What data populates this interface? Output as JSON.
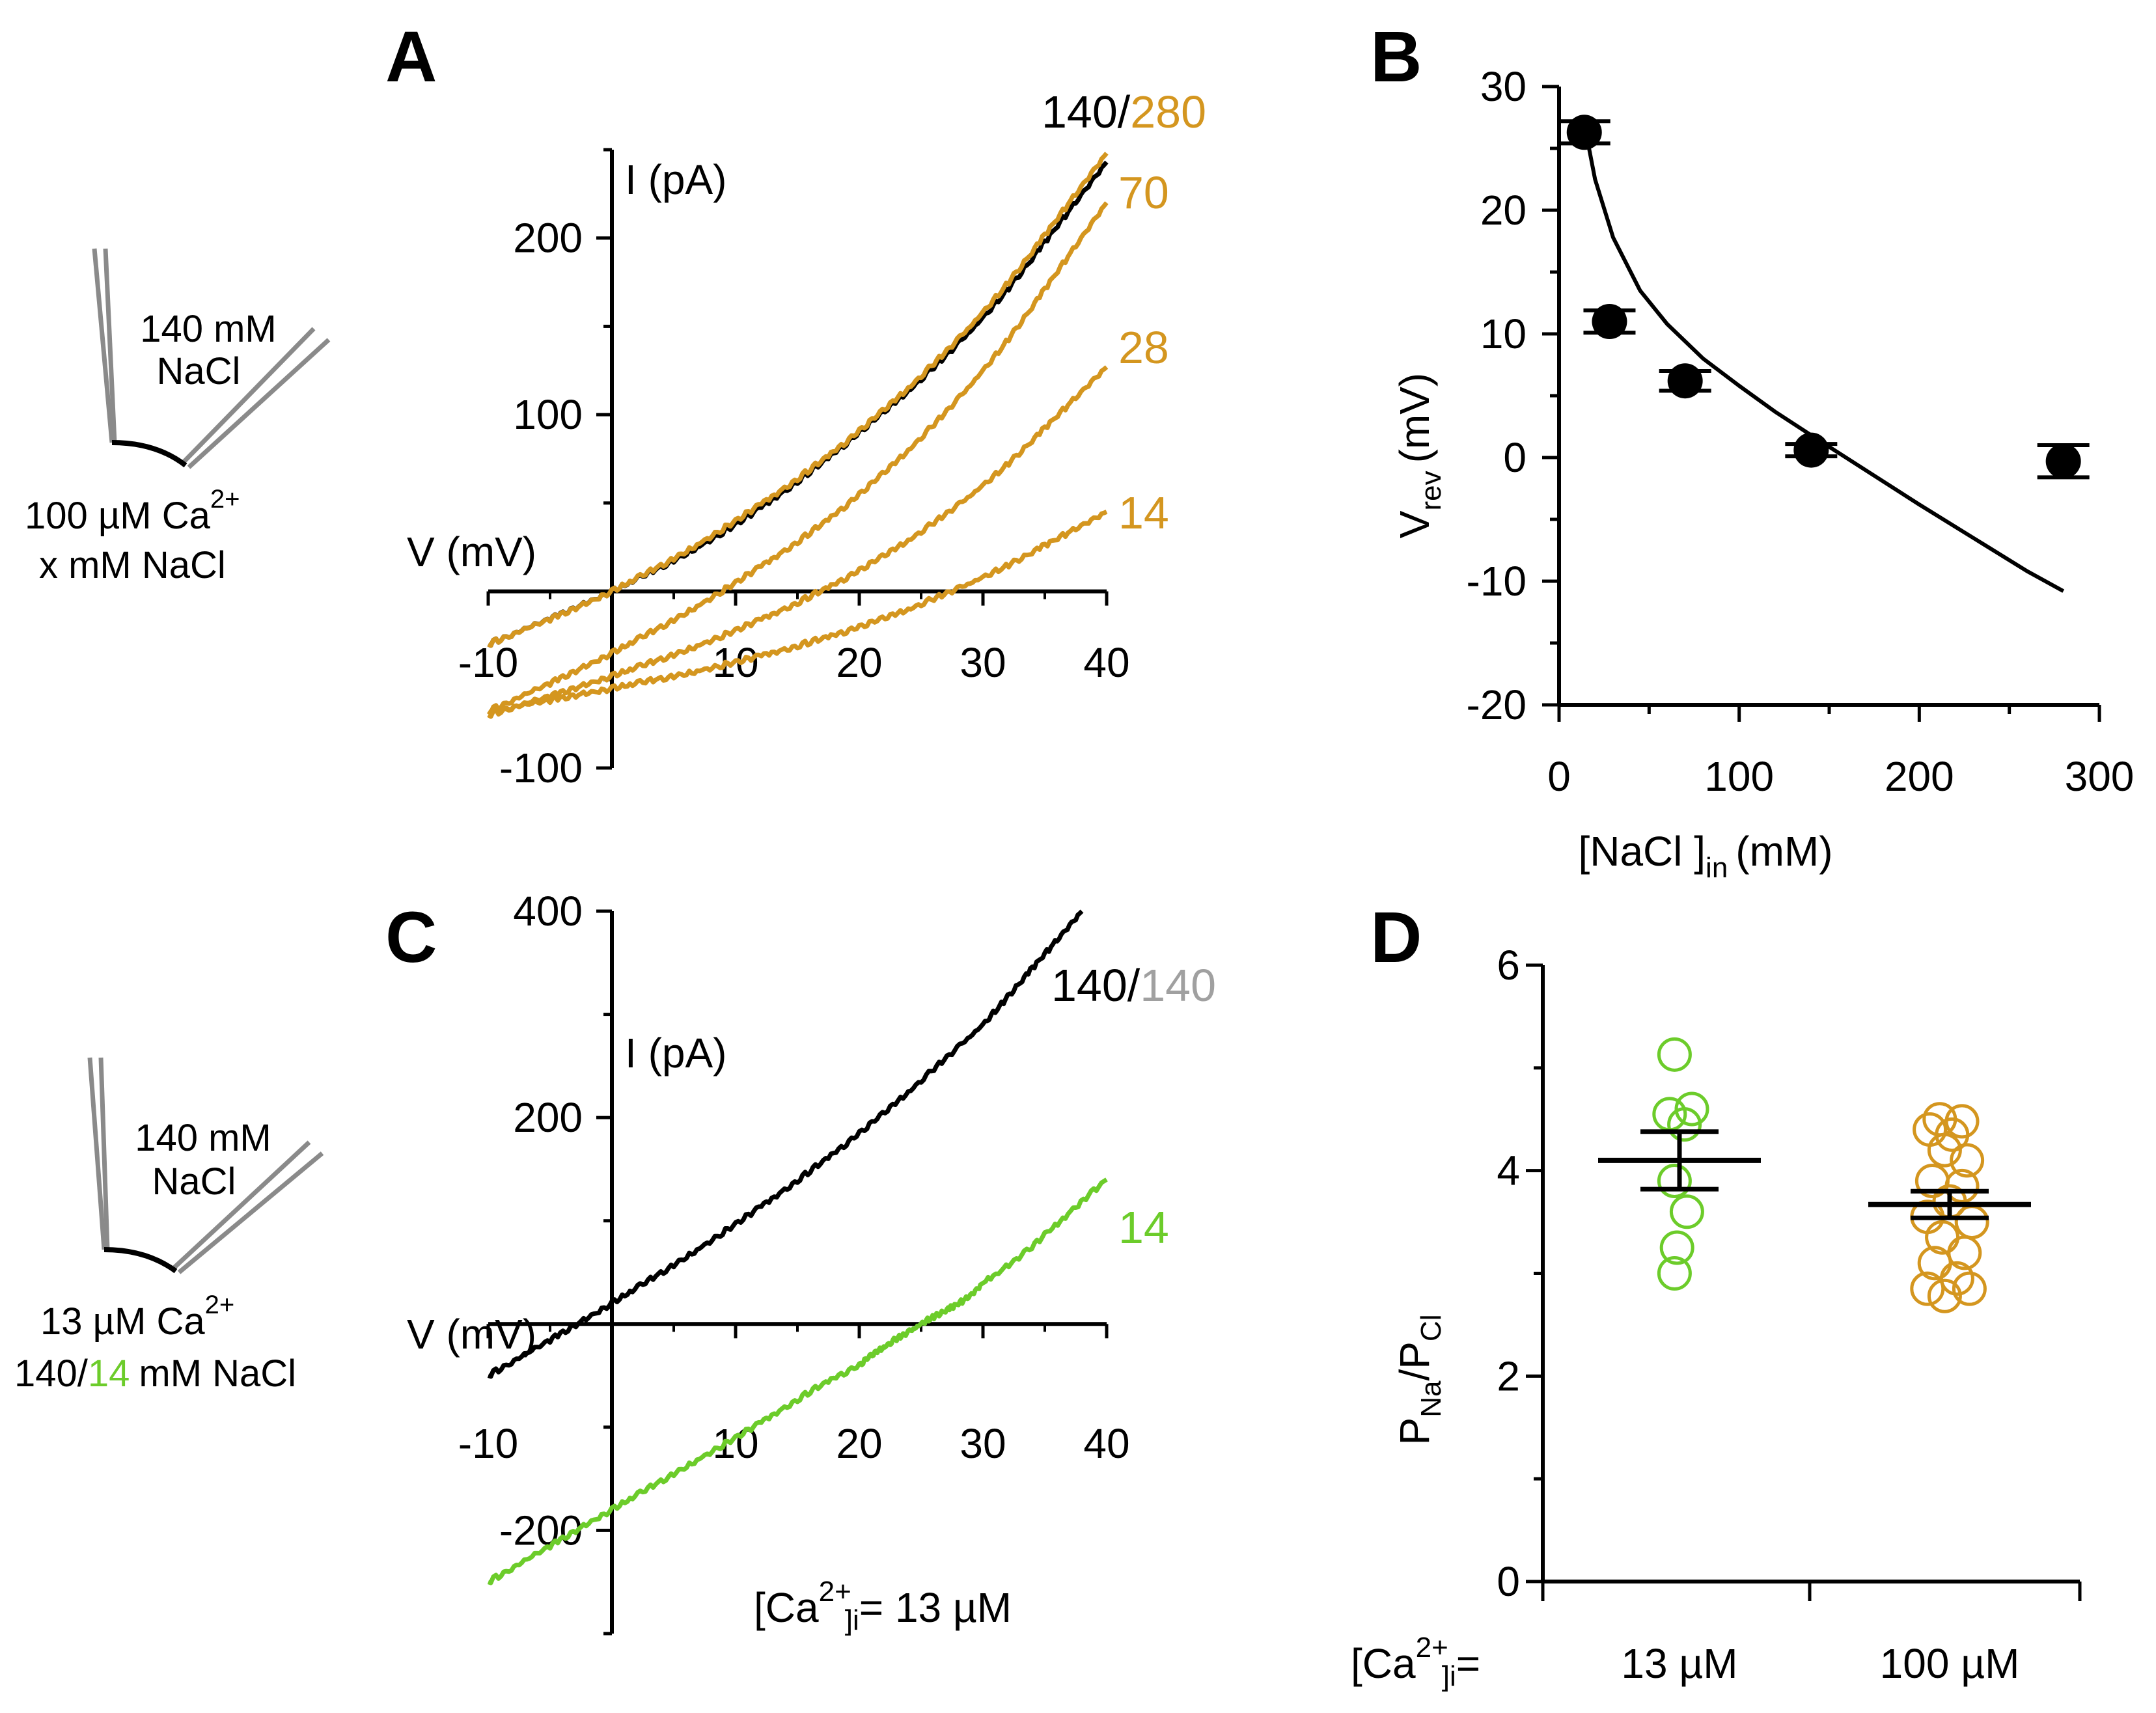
{
  "colors": {
    "black": "#000000",
    "orange": "#d4961f",
    "green": "#6ccc2a",
    "gray": "#a0a0a0",
    "pipette": "#8a8a8a"
  },
  "schematics": {
    "top": {
      "pipette_conc": "140 mM",
      "pipette_salt": "NaCl",
      "bath_ca_prefix": "100 µM Ca",
      "bath_ca_sup": "2+",
      "bath_nacl": "x mM NaCl"
    },
    "bottom": {
      "pipette_conc": "140 mM",
      "pipette_salt": "NaCl",
      "bath_ca_prefix": "13 µM Ca",
      "bath_ca_sup": "2+",
      "bath_prefix": "140/",
      "bath_green": "14",
      "bath_suffix": "mM NaCl"
    }
  },
  "chart_data": [
    {
      "panel": "A",
      "type": "line",
      "xlabel": "V (mV)",
      "ylabel": "I (pA)",
      "xlim": [
        -10,
        40
      ],
      "ylim": [
        -100,
        250
      ],
      "xticks": [
        "-10",
        "10",
        "20",
        "30",
        "40"
      ],
      "yticks": [
        "-100",
        "100",
        "200"
      ],
      "xtick_values": [
        -10,
        10,
        20,
        30,
        40
      ],
      "ytick_values": [
        -100,
        100,
        200
      ],
      "series": [
        {
          "name": "140",
          "color": "#000000",
          "x": [
            -10,
            0,
            10,
            20,
            30,
            40
          ],
          "y": [
            -30,
            0,
            38,
            90,
            155,
            243
          ]
        },
        {
          "name": "280",
          "color": "#d4961f",
          "x": [
            -10,
            0,
            10,
            20,
            30,
            40
          ],
          "y": [
            -30,
            0,
            40,
            91,
            158,
            248
          ]
        },
        {
          "name": "70",
          "color": "#d4961f",
          "x": [
            -10,
            0,
            10,
            20,
            30,
            40
          ],
          "y": [
            -68,
            -35,
            5,
            55,
            125,
            220
          ]
        },
        {
          "name": "28",
          "color": "#d4961f",
          "x": [
            -10,
            0,
            10,
            20,
            30,
            40
          ],
          "y": [
            -70,
            -48,
            -22,
            12,
            60,
            127
          ]
        },
        {
          "name": "14",
          "color": "#d4961f",
          "x": [
            -10,
            0,
            10,
            20,
            30,
            40
          ],
          "y": [
            -68,
            -55,
            -40,
            -20,
            8,
            45
          ]
        }
      ],
      "top_label_black": "140/",
      "top_label_orange": "280",
      "curve_labels": [
        "70",
        "28",
        "14"
      ]
    },
    {
      "panel": "B",
      "type": "scatter",
      "xlabel": "[NaCl ]",
      "xlabel_sub": "in",
      "xlabel_unit": "(mM)",
      "ylabel": "V",
      "ylabel_sub": "rev",
      "ylabel_unit": "(mV)",
      "xlim": [
        0,
        300
      ],
      "ylim": [
        -20,
        30
      ],
      "xticks": [
        "0",
        "100",
        "200",
        "300"
      ],
      "yticks": [
        "-20",
        "-10",
        "0",
        "10",
        "20",
        "30"
      ],
      "xtick_values": [
        0,
        100,
        200,
        300
      ],
      "ytick_values": [
        -20,
        -10,
        0,
        10,
        20,
        30
      ],
      "points": [
        {
          "x": 14,
          "y": 26.3,
          "err": 0.9
        },
        {
          "x": 28,
          "y": 11,
          "err": 0.9
        },
        {
          "x": 70,
          "y": 6.2,
          "err": 0.8
        },
        {
          "x": 140,
          "y": 0.6,
          "err": 0.5
        },
        {
          "x": 280,
          "y": -0.3,
          "err": 1.3
        }
      ],
      "fit": {
        "x": [
          14,
          20,
          30,
          45,
          60,
          80,
          100,
          120,
          140,
          170,
          200,
          230,
          260,
          280
        ],
        "y": [
          27,
          22.5,
          17.8,
          13.5,
          10.8,
          8,
          5.8,
          3.7,
          1.8,
          -1,
          -3.8,
          -6.5,
          -9.2,
          -10.8
        ]
      }
    },
    {
      "panel": "C",
      "type": "line",
      "xlabel": "V (mV)",
      "ylabel": "I (pA)",
      "xlim": [
        -10,
        40
      ],
      "ylim": [
        -300,
        400
      ],
      "xticks": [
        "-10",
        "10",
        "20",
        "30",
        "40"
      ],
      "yticks": [
        "-200",
        "200",
        "400"
      ],
      "xtick_values": [
        -10,
        10,
        20,
        30,
        40
      ],
      "ytick_values": [
        -200,
        200,
        400
      ],
      "series": [
        {
          "name": "140",
          "color": "#000000",
          "x": [
            -10,
            0,
            10,
            20,
            30,
            38
          ],
          "y": [
            -50,
            20,
            97,
            185,
            290,
            400
          ]
        },
        {
          "name": "14",
          "color": "#6ccc2a",
          "x": [
            -10,
            0,
            10,
            20,
            25,
            30,
            40
          ],
          "y": [
            -250,
            -180,
            -110,
            -40,
            0,
            40,
            140
          ]
        }
      ],
      "top_label_black": "140/",
      "top_label_gray": "140",
      "curve_label": "14",
      "annotation_prefix": "[Ca",
      "annotation_sup": "2+",
      "annotation_sub": "i",
      "annotation_suffix": "= 13 µM"
    },
    {
      "panel": "D",
      "type": "scatter",
      "ylabel": "P",
      "ylabel_sub1": "Na",
      "ylabel_mid": "/P",
      "ylabel_sub2": "Cl",
      "ylim": [
        0,
        6
      ],
      "yticks": [
        "0",
        "2",
        "4",
        "6"
      ],
      "ytick_values": [
        0,
        2,
        4,
        6
      ],
      "row_label_prefix": "[Ca",
      "row_label_sup": "2+",
      "row_label_sub": "i",
      "row_label_suffix": "=",
      "groups": [
        {
          "label": "13 µM",
          "color": "#6ccc2a",
          "mean": 4.1,
          "sem": 0.28,
          "points": [
            {
              "y": 5.13,
              "dx": -0.02
            },
            {
              "y": 4.6,
              "dx": 0.05
            },
            {
              "y": 4.55,
              "dx": -0.04
            },
            {
              "y": 4.45,
              "dx": 0.02
            },
            {
              "y": 3.9,
              "dx": -0.02
            },
            {
              "y": 3.6,
              "dx": 0.03
            },
            {
              "y": 3.25,
              "dx": -0.01
            },
            {
              "y": 3.0,
              "dx": -0.02
            }
          ]
        },
        {
          "label": "100 µM",
          "color": "#d4961f",
          "mean": 3.67,
          "sem": 0.13,
          "points": [
            {
              "y": 4.5,
              "dx": -0.04
            },
            {
              "y": 4.48,
              "dx": 0.05
            },
            {
              "y": 4.4,
              "dx": -0.08
            },
            {
              "y": 4.35,
              "dx": 0.01
            },
            {
              "y": 4.1,
              "dx": 0.07
            },
            {
              "y": 3.9,
              "dx": -0.07
            },
            {
              "y": 3.85,
              "dx": 0.05
            },
            {
              "y": 3.7,
              "dx": 0.0
            },
            {
              "y": 3.55,
              "dx": -0.09
            },
            {
              "y": 3.5,
              "dx": 0.09
            },
            {
              "y": 3.35,
              "dx": -0.03
            },
            {
              "y": 3.2,
              "dx": 0.06
            },
            {
              "y": 3.1,
              "dx": -0.06
            },
            {
              "y": 2.95,
              "dx": 0.03
            },
            {
              "y": 2.85,
              "dx": -0.09
            },
            {
              "y": 2.85,
              "dx": 0.08
            },
            {
              "y": 2.78,
              "dx": -0.02
            },
            {
              "y": 4.2,
              "dx": -0.02
            }
          ]
        }
      ]
    }
  ]
}
